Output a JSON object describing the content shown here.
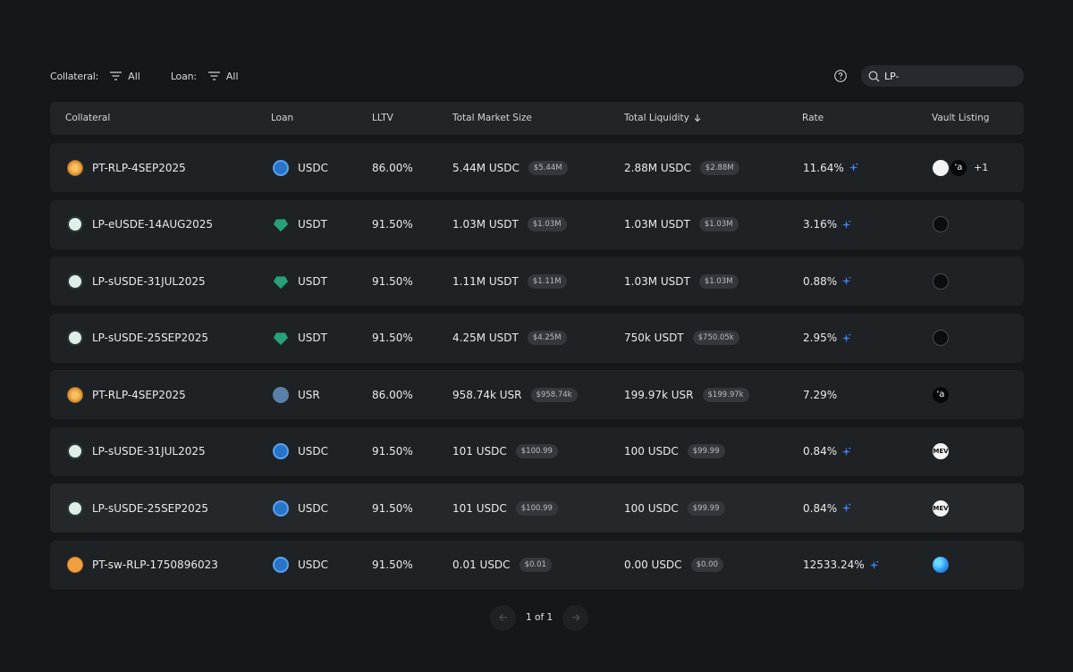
{
  "filters": {
    "collateral_label": "Collateral:",
    "collateral_value": "All",
    "loan_label": "Loan:",
    "loan_value": "All"
  },
  "search": {
    "value": "LP-"
  },
  "columns": {
    "collateral": "Collateral",
    "loan": "Loan",
    "lltv": "LLTV",
    "total_market_size": "Total Market Size",
    "total_liquidity": "Total Liquidity",
    "rate": "Rate",
    "vault_listing": "Vault Listing"
  },
  "rows": [
    {
      "collateral": "PT-RLP-4SEP2025",
      "collateral_icon": "pt-rlp-icon",
      "loan": "USDC",
      "loan_icon": "usdc-icon",
      "lltv": "86.00%",
      "tms": "5.44M USDC",
      "tms_usd": "$5.44M",
      "tl": "2.88M USDC",
      "tl_usd": "$2.88M",
      "rate": "11.64%",
      "spark": true,
      "vaults": [
        "square-vault-icon",
        "resolv-vault-icon"
      ],
      "more": "+1"
    },
    {
      "collateral": "LP-eUSDE-14AUG2025",
      "collateral_icon": "lp-eusde-icon",
      "loan": "USDT",
      "loan_icon": "usdt-icon",
      "lltv": "91.50%",
      "tms": "1.03M USDT",
      "tms_usd": "$1.03M",
      "tl": "1.03M USDT",
      "tl_usd": "$1.03M",
      "rate": "3.16%",
      "spark": true,
      "vaults": [
        "dark-vault-icon"
      ],
      "more": ""
    },
    {
      "collateral": "LP-sUSDE-31JUL2025",
      "collateral_icon": "lp-susde-icon",
      "loan": "USDT",
      "loan_icon": "usdt-icon",
      "lltv": "91.50%",
      "tms": "1.11M USDT",
      "tms_usd": "$1.11M",
      "tl": "1.03M USDT",
      "tl_usd": "$1.03M",
      "rate": "0.88%",
      "spark": true,
      "vaults": [
        "dark-vault-icon"
      ],
      "more": ""
    },
    {
      "collateral": "LP-sUSDE-25SEP2025",
      "collateral_icon": "lp-susde-icon",
      "loan": "USDT",
      "loan_icon": "usdt-icon",
      "lltv": "91.50%",
      "tms": "4.25M USDT",
      "tms_usd": "$4.25M",
      "tl": "750k USDT",
      "tl_usd": "$750.05k",
      "rate": "2.95%",
      "spark": true,
      "vaults": [
        "dark-vault-icon"
      ],
      "more": ""
    },
    {
      "collateral": "PT-RLP-4SEP2025",
      "collateral_icon": "pt-rlp-icon",
      "loan": "USR",
      "loan_icon": "usr-icon",
      "lltv": "86.00%",
      "tms": "958.74k USR",
      "tms_usd": "$958.74k",
      "tl": "199.97k USR",
      "tl_usd": "$199.97k",
      "rate": "7.29%",
      "spark": false,
      "vaults": [
        "resolv-vault-icon"
      ],
      "more": ""
    },
    {
      "collateral": "LP-sUSDE-31JUL2025",
      "collateral_icon": "lp-susde-icon",
      "loan": "USDC",
      "loan_icon": "usdc-icon",
      "lltv": "91.50%",
      "tms": "101 USDC",
      "tms_usd": "$100.99",
      "tl": "100 USDC",
      "tl_usd": "$99.99",
      "rate": "0.84%",
      "spark": true,
      "vaults": [
        "mev-vault-icon"
      ],
      "more": ""
    },
    {
      "collateral": "LP-sUSDE-25SEP2025",
      "collateral_icon": "lp-susde-icon",
      "loan": "USDC",
      "loan_icon": "usdc-icon",
      "lltv": "91.50%",
      "tms": "101 USDC",
      "tms_usd": "$100.99",
      "tl": "100 USDC",
      "tl_usd": "$99.99",
      "rate": "0.84%",
      "spark": true,
      "vaults": [
        "mev-vault-icon"
      ],
      "more": ""
    },
    {
      "collateral": "PT-sw-RLP-1750896023",
      "collateral_icon": "pt-sw-rlp-icon",
      "loan": "USDC",
      "loan_icon": "usdc-icon",
      "lltv": "91.50%",
      "tms": "0.01 USDC",
      "tms_usd": "$0.01",
      "tl": "0.00 USDC",
      "tl_usd": "$0.00",
      "rate": "12533.24%",
      "spark": true,
      "vaults": [
        "globe-vault-icon"
      ],
      "more": ""
    }
  ],
  "pagination": {
    "text": "1 of 1"
  },
  "colors": {
    "background": "#15181b",
    "row": "#1f2225",
    "row_hover": "#25282b",
    "spark": "#3b82f6"
  },
  "vault_text": {
    "mev": "MEV",
    "resolv": "'a"
  }
}
